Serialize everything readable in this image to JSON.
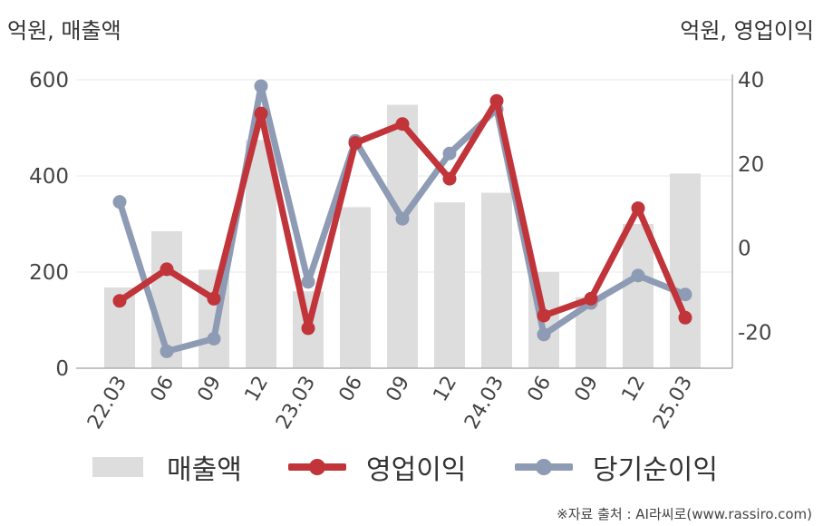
{
  "units": {
    "left": "억원, 매출액",
    "right": "억원, 영업이익"
  },
  "source": "※자료 출처 : AI라씨로(www.rassiro.com)",
  "legend": {
    "items": [
      {
        "label": "매출액",
        "kind": "bar",
        "color": "#dddddd"
      },
      {
        "label": "영업이익",
        "kind": "line",
        "color": "#c0343a"
      },
      {
        "label": "당기순이익",
        "kind": "line",
        "color": "#8e9bb4"
      }
    ]
  },
  "chart_data": {
    "type": "bar+line",
    "categories": [
      "22.03",
      "06",
      "09",
      "12",
      "23.03",
      "06",
      "09",
      "12",
      "24.03",
      "06",
      "09",
      "12",
      "25.03"
    ],
    "y_left": {
      "label": "억원, 매출액",
      "ylim": [
        0,
        600
      ],
      "ticks": [
        0,
        200,
        400,
        600
      ]
    },
    "y_right": {
      "label": "억원, 영업이익",
      "ylim": [
        -28.5,
        40
      ],
      "ticks": [
        -20,
        0,
        20,
        40
      ]
    },
    "grid": true,
    "legend_position": "bottom",
    "series": [
      {
        "name": "매출액",
        "type": "bar",
        "axis": "left",
        "color": "#dddddd",
        "values": [
          168,
          285,
          205,
          475,
          160,
          335,
          548,
          345,
          365,
          200,
          148,
          300,
          405
        ]
      },
      {
        "name": "영업이익",
        "type": "line",
        "axis": "right",
        "color": "#c0343a",
        "values": [
          -12.5,
          -5,
          -12,
          32,
          -19,
          25,
          29.5,
          16.5,
          35,
          -16,
          -12,
          9.5,
          -16.5
        ]
      },
      {
        "name": "당기순이익",
        "type": "line",
        "axis": "right",
        "color": "#8e9bb4",
        "values": [
          11,
          -24.5,
          -21.5,
          38.5,
          -8,
          25.5,
          7,
          22.5,
          33,
          -20.5,
          -13,
          -6.5,
          -11
        ]
      }
    ]
  }
}
